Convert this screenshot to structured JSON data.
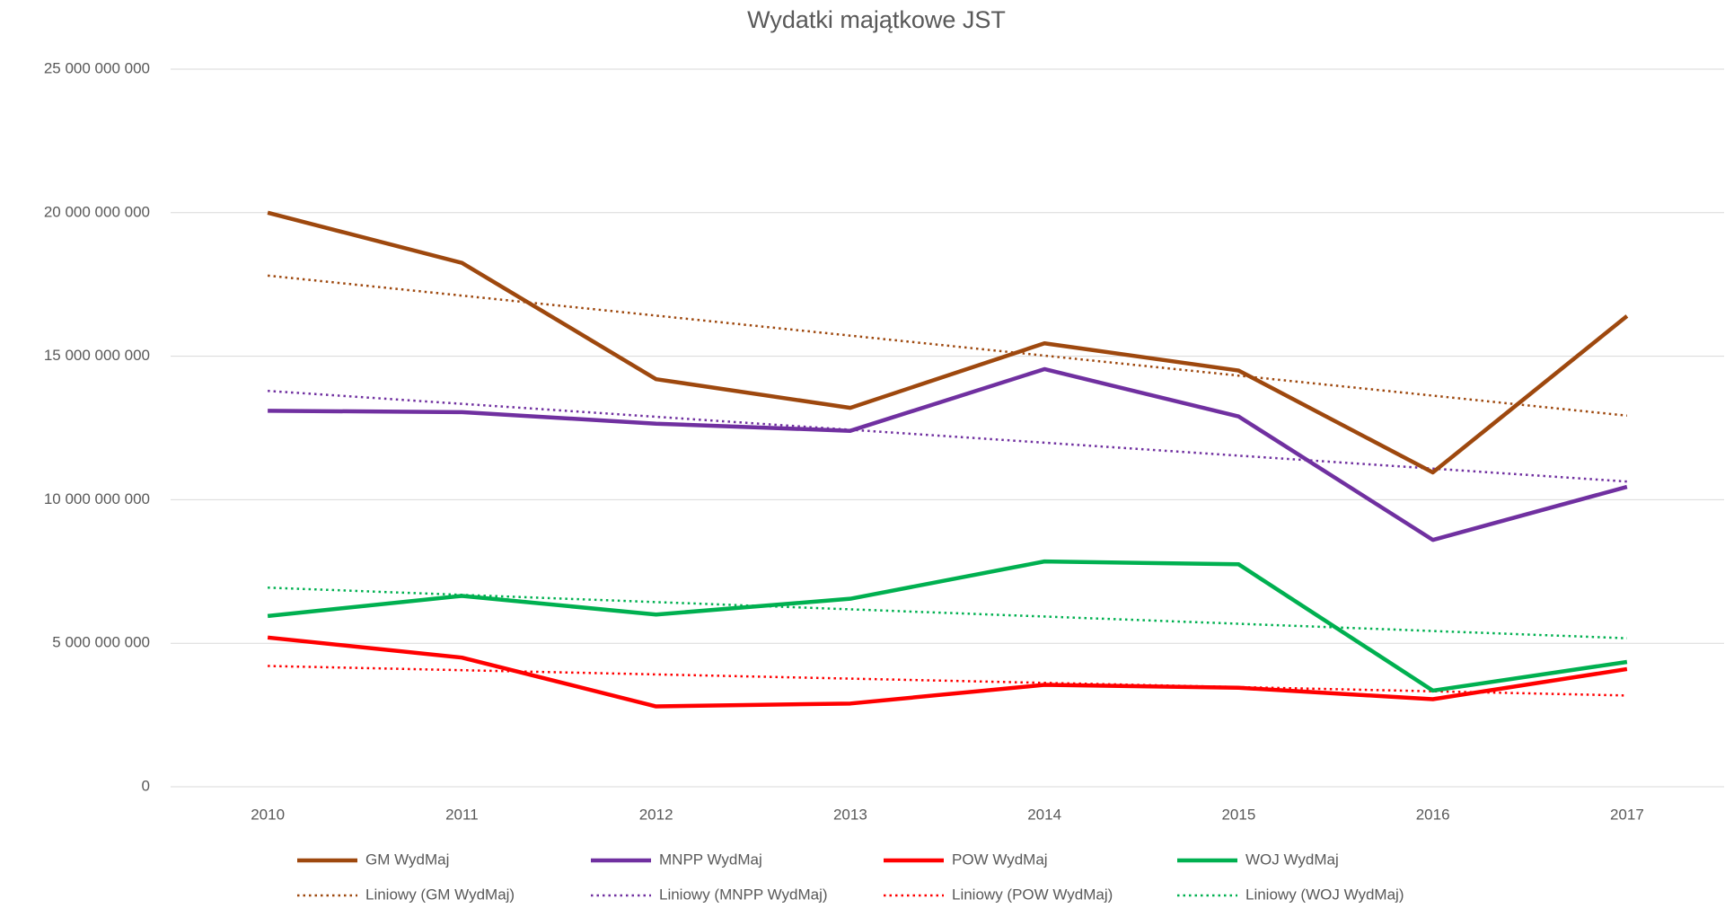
{
  "chart_data": {
    "type": "line",
    "title": "Wydatki majątkowe JST",
    "categories": [
      "2010",
      "2011",
      "2012",
      "2013",
      "2014",
      "2015",
      "2016",
      "2017"
    ],
    "series": [
      {
        "name": "GM WydMaj",
        "color": "#9e480e",
        "values": [
          20000000000,
          18250000000,
          14200000000,
          13200000000,
          15450000000,
          14500000000,
          10950000000,
          16400000000
        ],
        "trendline": {
          "name": "Liniowy (GM WydMaj)"
        }
      },
      {
        "name": "MNPP WydMaj",
        "color": "#7030a0",
        "values": [
          13100000000,
          13050000000,
          12650000000,
          12400000000,
          14550000000,
          12900000000,
          8600000000,
          10450000000
        ],
        "trendline": {
          "name": "Liniowy (MNPP WydMaj)"
        }
      },
      {
        "name": "POW WydMaj",
        "color": "#ff0000",
        "values": [
          5200000000,
          4500000000,
          2800000000,
          2900000000,
          3550000000,
          3450000000,
          3050000000,
          4100000000
        ],
        "trendline": {
          "name": "Liniowy (POW WydMaj)"
        }
      },
      {
        "name": "WOJ WydMaj",
        "color": "#00b050",
        "values": [
          5950000000,
          6650000000,
          6000000000,
          6550000000,
          7850000000,
          7750000000,
          3350000000,
          4350000000
        ],
        "trendline": {
          "name": "Liniowy (WOJ WydMaj)"
        }
      }
    ],
    "ylim": [
      0,
      25000000000
    ],
    "yticks": [
      0,
      {
        "value": 5000000000,
        "label": "5 000 000 000"
      },
      {
        "value": 10000000000,
        "label": "10 000 000 000"
      },
      {
        "value": 15000000000,
        "label": "15 000 000 000"
      },
      {
        "value": 20000000000,
        "label": "20 000 000 000"
      },
      {
        "value": 25000000000,
        "label": "25 000 000 000"
      }
    ],
    "grid": true,
    "legend": "bottom"
  }
}
